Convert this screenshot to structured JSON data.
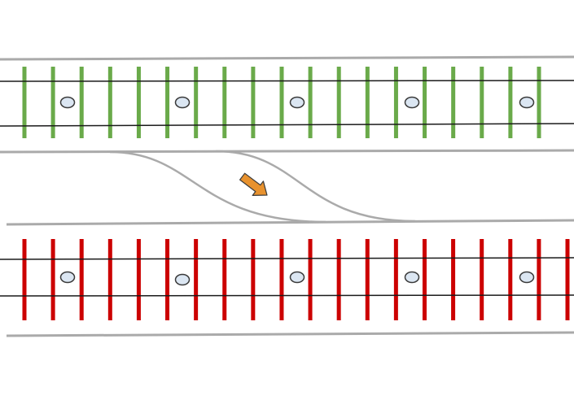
{
  "colors": {
    "background": "#ffffff",
    "lane_border": "#aaaaaa",
    "rail_line": "#1a1a1a",
    "upper_track_ties": "#6aaa4a",
    "lower_track_ties": "#cc0000",
    "marker_fill": "#dbe6f2",
    "marker_stroke": "#3a3a3a",
    "arrow_fill": "#e8922e",
    "arrow_stroke": "#3a3a3a"
  },
  "upper_track": {
    "tie_count": 19,
    "marker_count": 5
  },
  "lower_track": {
    "tie_count": 20,
    "marker_count": 5
  },
  "direction_icon": "arrow-down-right-icon"
}
